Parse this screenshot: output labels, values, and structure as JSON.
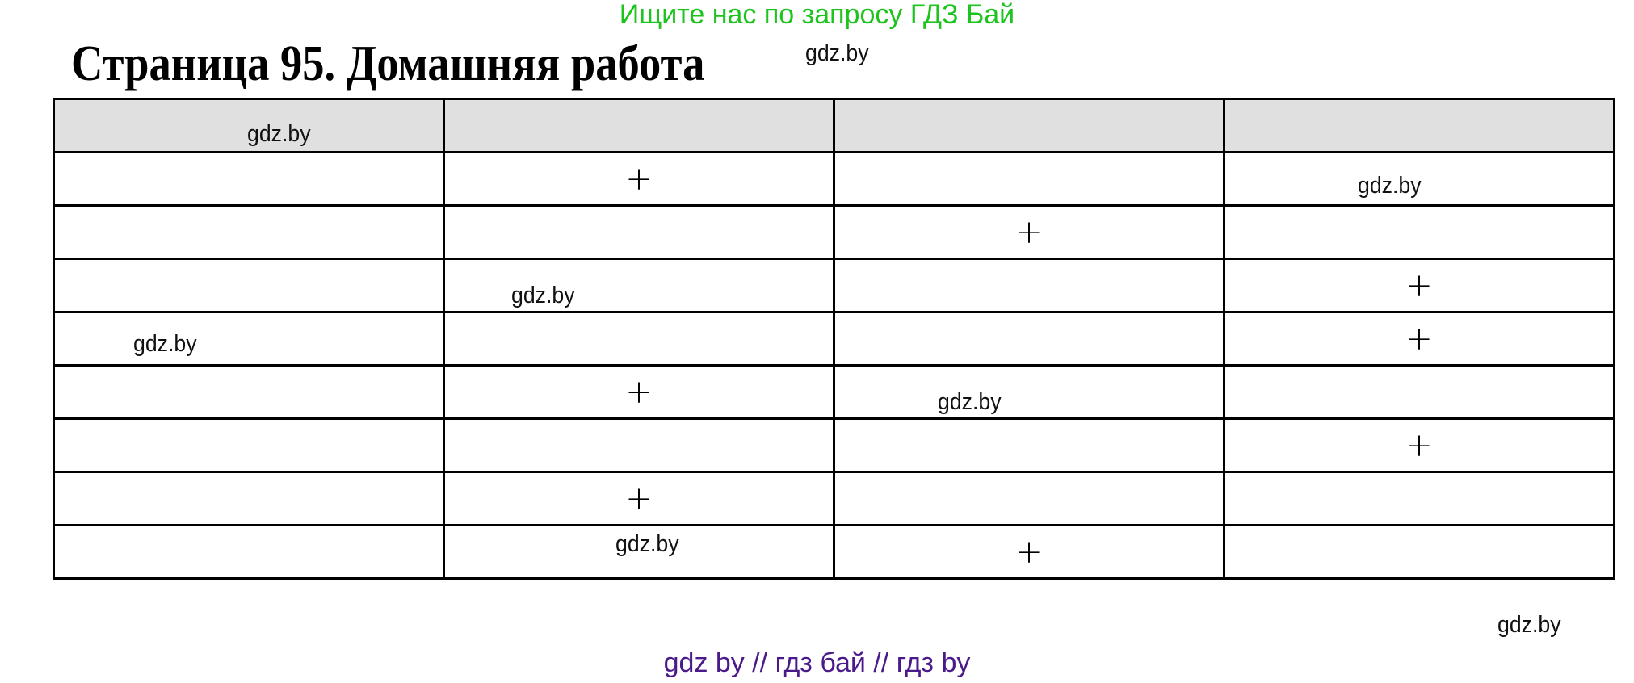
{
  "promo_text": "Ищите нас по запросу ГДЗ Бай",
  "page_title": "Страница 95. Домашняя работа",
  "table": {
    "header": [
      "",
      "",
      "",
      ""
    ],
    "rows": [
      [
        "",
        "+",
        "",
        ""
      ],
      [
        "",
        "",
        "+",
        ""
      ],
      [
        "",
        "",
        "",
        "+"
      ],
      [
        "",
        "",
        "",
        "+"
      ],
      [
        "",
        "+",
        "",
        ""
      ],
      [
        "",
        "",
        "",
        "+"
      ],
      [
        "",
        "+",
        "",
        ""
      ],
      [
        "",
        "",
        "+",
        ""
      ]
    ]
  },
  "watermark": "gdz.by",
  "footer_text": "gdz by  //  гдз бай  //  гдз by",
  "colors": {
    "promo": "#1ec41e",
    "footer": "#4b1a8a",
    "header_bg": "#e0e0e0"
  }
}
